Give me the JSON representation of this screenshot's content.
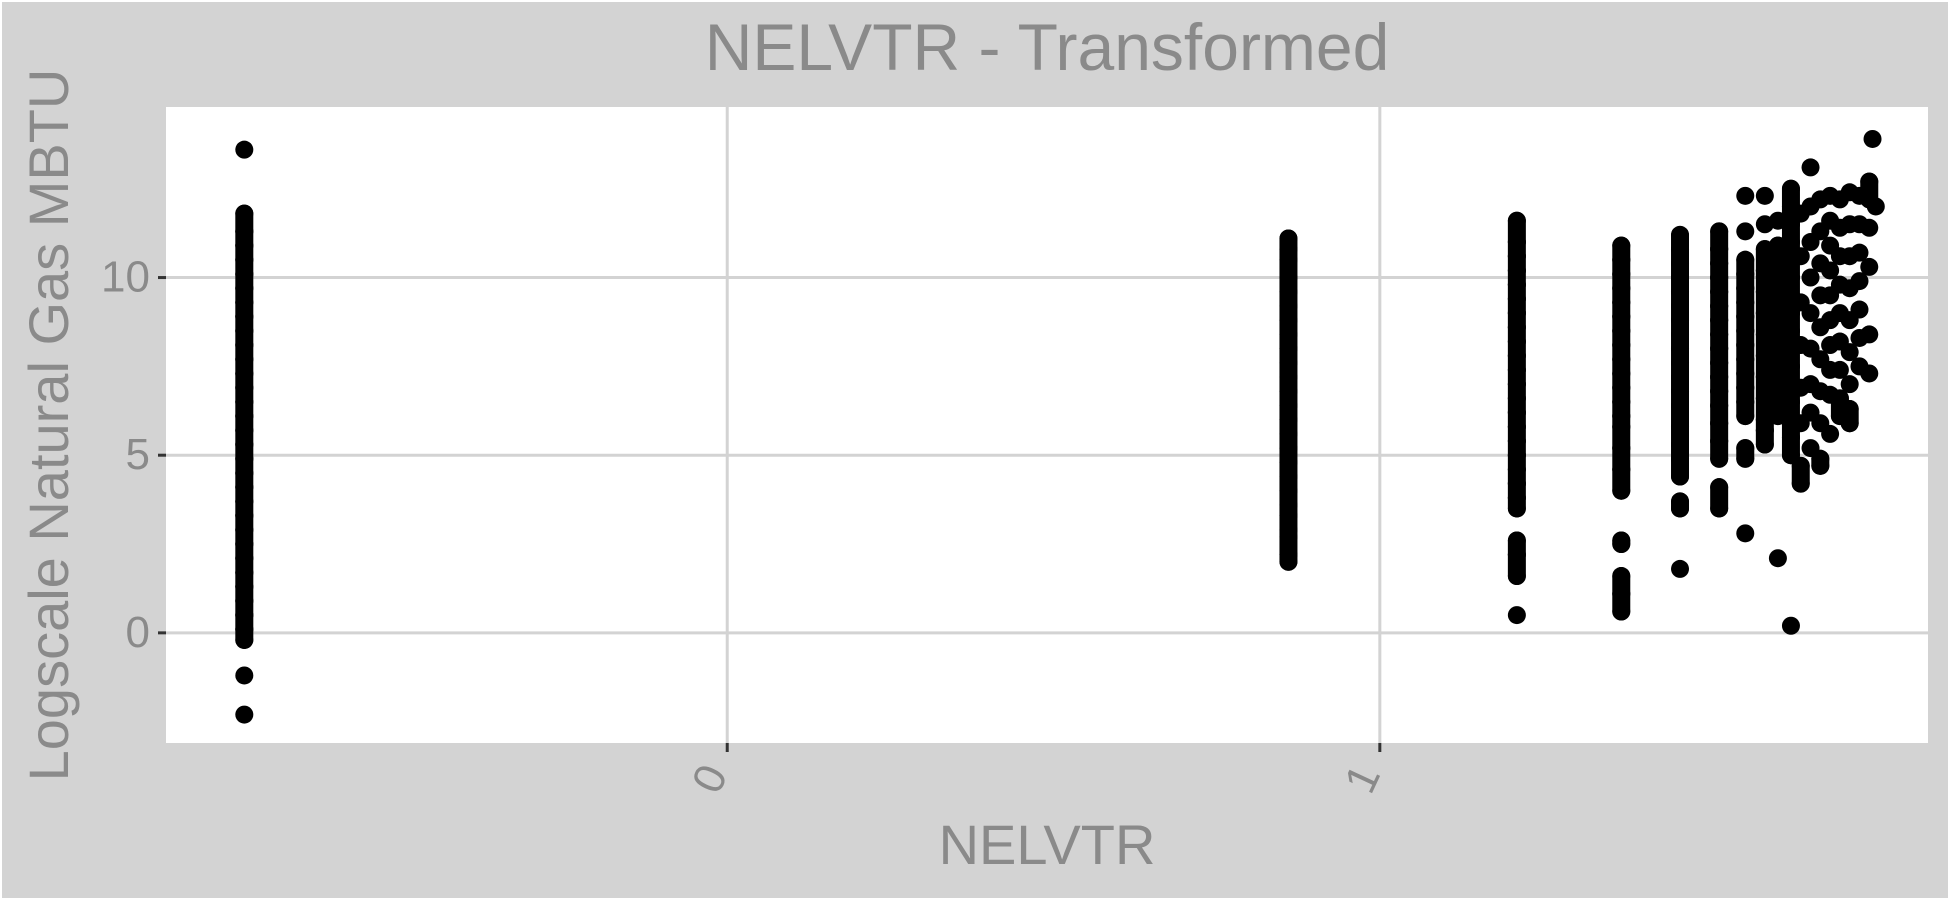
{
  "chart_data": {
    "type": "scatter",
    "title": "NELVTR - Transformed",
    "xlabel": "NELVTR",
    "ylabel": "Logscale Natural Gas MBTU",
    "x_ticks": [
      0,
      1
    ],
    "x_tick_labels": [
      "0",
      "1"
    ],
    "y_ticks": [
      0,
      5,
      10
    ],
    "y_tick_labels": [
      "0",
      "5",
      "10"
    ],
    "xlim": [
      -0.86,
      1.84
    ],
    "ylim": [
      -3.1,
      14.8
    ],
    "grid": true,
    "legend": "none",
    "colors": {
      "background": "#d3d3d3",
      "panel": "#ffffff",
      "grid": "#d3d3d3",
      "text": "#8a8a8a",
      "point": "#000000"
    },
    "series": [
      {
        "points": [
          [
            -0.74,
            13.6
          ],
          [
            -0.74,
            11.8
          ],
          [
            -0.74,
            11.3
          ],
          [
            -0.74,
            10.9
          ],
          [
            -0.74,
            10.5
          ],
          [
            -0.74,
            10.1
          ],
          [
            -0.74,
            9.7
          ],
          [
            -0.74,
            9.3
          ],
          [
            -0.74,
            8.9
          ],
          [
            -0.74,
            8.5
          ],
          [
            -0.74,
            8.1
          ],
          [
            -0.74,
            7.7
          ],
          [
            -0.74,
            7.3
          ],
          [
            -0.74,
            6.9
          ],
          [
            -0.74,
            6.5
          ],
          [
            -0.74,
            6.1
          ],
          [
            -0.74,
            5.7
          ],
          [
            -0.74,
            5.3
          ],
          [
            -0.74,
            4.9
          ],
          [
            -0.74,
            4.5
          ],
          [
            -0.74,
            4.1
          ],
          [
            -0.74,
            3.7
          ],
          [
            -0.74,
            3.3
          ],
          [
            -0.74,
            2.9
          ],
          [
            -0.74,
            2.5
          ],
          [
            -0.74,
            2.1
          ],
          [
            -0.74,
            1.7
          ],
          [
            -0.74,
            1.3
          ],
          [
            -0.74,
            0.9
          ],
          [
            -0.74,
            0.5
          ],
          [
            -0.74,
            0.1
          ],
          [
            -0.74,
            -0.2
          ],
          [
            -0.74,
            -1.2
          ],
          [
            -0.74,
            -2.3
          ],
          [
            0.86,
            11.1
          ],
          [
            0.86,
            10.8
          ],
          [
            0.86,
            10.5
          ],
          [
            0.86,
            10.0
          ],
          [
            0.86,
            9.6
          ],
          [
            0.86,
            9.2
          ],
          [
            0.86,
            8.8
          ],
          [
            0.86,
            8.4
          ],
          [
            0.86,
            8.0
          ],
          [
            0.86,
            7.6
          ],
          [
            0.86,
            7.2
          ],
          [
            0.86,
            6.8
          ],
          [
            0.86,
            6.4
          ],
          [
            0.86,
            6.0
          ],
          [
            0.86,
            5.6
          ],
          [
            0.86,
            5.2
          ],
          [
            0.86,
            4.8
          ],
          [
            0.86,
            4.4
          ],
          [
            0.86,
            4.0
          ],
          [
            0.86,
            3.6
          ],
          [
            0.86,
            3.3
          ],
          [
            0.86,
            2.9
          ],
          [
            0.86,
            2.7
          ],
          [
            0.86,
            2.2
          ],
          [
            0.86,
            2.0
          ],
          [
            1.21,
            11.6
          ],
          [
            1.21,
            11.0
          ],
          [
            1.21,
            10.6
          ],
          [
            1.21,
            10.2
          ],
          [
            1.21,
            9.8
          ],
          [
            1.21,
            9.4
          ],
          [
            1.21,
            9.0
          ],
          [
            1.21,
            8.6
          ],
          [
            1.21,
            8.2
          ],
          [
            1.21,
            7.8
          ],
          [
            1.21,
            7.4
          ],
          [
            1.21,
            7.0
          ],
          [
            1.21,
            6.6
          ],
          [
            1.21,
            6.2
          ],
          [
            1.21,
            5.8
          ],
          [
            1.21,
            5.4
          ],
          [
            1.21,
            5.0
          ],
          [
            1.21,
            4.6
          ],
          [
            1.21,
            4.2
          ],
          [
            1.21,
            3.8
          ],
          [
            1.21,
            3.5
          ],
          [
            1.21,
            2.6
          ],
          [
            1.21,
            2.2
          ],
          [
            1.21,
            1.6
          ],
          [
            1.21,
            0.5
          ],
          [
            1.37,
            10.9
          ],
          [
            1.37,
            10.5
          ],
          [
            1.37,
            10.1
          ],
          [
            1.37,
            9.7
          ],
          [
            1.37,
            9.3
          ],
          [
            1.37,
            8.9
          ],
          [
            1.37,
            8.5
          ],
          [
            1.37,
            8.1
          ],
          [
            1.37,
            7.7
          ],
          [
            1.37,
            7.3
          ],
          [
            1.37,
            6.9
          ],
          [
            1.37,
            6.5
          ],
          [
            1.37,
            6.1
          ],
          [
            1.37,
            5.8
          ],
          [
            1.37,
            5.2
          ],
          [
            1.37,
            4.6
          ],
          [
            1.37,
            4.0
          ],
          [
            1.37,
            2.6
          ],
          [
            1.37,
            2.5
          ],
          [
            1.37,
            1.6
          ],
          [
            1.37,
            1.1
          ],
          [
            1.37,
            0.6
          ],
          [
            1.46,
            11.2
          ],
          [
            1.46,
            10.8
          ],
          [
            1.46,
            10.4
          ],
          [
            1.46,
            10.0
          ],
          [
            1.46,
            9.6
          ],
          [
            1.46,
            9.2
          ],
          [
            1.46,
            8.8
          ],
          [
            1.46,
            8.4
          ],
          [
            1.46,
            8.0
          ],
          [
            1.46,
            7.6
          ],
          [
            1.46,
            7.2
          ],
          [
            1.46,
            6.8
          ],
          [
            1.46,
            6.4
          ],
          [
            1.46,
            5.8
          ],
          [
            1.46,
            5.3
          ],
          [
            1.46,
            4.9
          ],
          [
            1.46,
            4.4
          ],
          [
            1.46,
            3.7
          ],
          [
            1.46,
            3.5
          ],
          [
            1.46,
            1.8
          ],
          [
            1.52,
            11.3
          ],
          [
            1.52,
            10.8
          ],
          [
            1.52,
            10.4
          ],
          [
            1.52,
            10.0
          ],
          [
            1.52,
            9.6
          ],
          [
            1.52,
            9.2
          ],
          [
            1.52,
            8.8
          ],
          [
            1.52,
            8.4
          ],
          [
            1.52,
            8.0
          ],
          [
            1.52,
            7.6
          ],
          [
            1.52,
            7.2
          ],
          [
            1.52,
            6.8
          ],
          [
            1.52,
            6.4
          ],
          [
            1.52,
            5.9
          ],
          [
            1.52,
            5.4
          ],
          [
            1.52,
            4.9
          ],
          [
            1.52,
            4.1
          ],
          [
            1.52,
            3.5
          ],
          [
            1.56,
            12.3
          ],
          [
            1.56,
            11.3
          ],
          [
            1.56,
            10.5
          ],
          [
            1.56,
            10.1
          ],
          [
            1.56,
            9.7
          ],
          [
            1.56,
            9.3
          ],
          [
            1.56,
            8.9
          ],
          [
            1.56,
            8.5
          ],
          [
            1.56,
            8.1
          ],
          [
            1.56,
            7.7
          ],
          [
            1.56,
            7.3
          ],
          [
            1.56,
            6.9
          ],
          [
            1.56,
            6.5
          ],
          [
            1.56,
            6.1
          ],
          [
            1.56,
            5.2
          ],
          [
            1.56,
            4.9
          ],
          [
            1.56,
            2.8
          ],
          [
            1.59,
            12.3
          ],
          [
            1.59,
            11.5
          ],
          [
            1.59,
            10.8
          ],
          [
            1.59,
            10.2
          ],
          [
            1.59,
            9.6
          ],
          [
            1.59,
            9.0
          ],
          [
            1.59,
            8.4
          ],
          [
            1.59,
            7.8
          ],
          [
            1.59,
            7.2
          ],
          [
            1.59,
            6.6
          ],
          [
            1.59,
            6.0
          ],
          [
            1.59,
            5.7
          ],
          [
            1.59,
            5.3
          ],
          [
            1.61,
            11.6
          ],
          [
            1.61,
            10.9
          ],
          [
            1.61,
            10.3
          ],
          [
            1.61,
            9.7
          ],
          [
            1.61,
            9.1
          ],
          [
            1.61,
            8.5
          ],
          [
            1.61,
            7.9
          ],
          [
            1.61,
            7.3
          ],
          [
            1.61,
            6.7
          ],
          [
            1.61,
            6.1
          ],
          [
            1.61,
            2.1
          ],
          [
            1.63,
            12.5
          ],
          [
            1.63,
            12.0
          ],
          [
            1.63,
            11.5
          ],
          [
            1.63,
            11.0
          ],
          [
            1.63,
            10.5
          ],
          [
            1.63,
            10.0
          ],
          [
            1.63,
            9.5
          ],
          [
            1.63,
            9.0
          ],
          [
            1.63,
            8.5
          ],
          [
            1.63,
            8.0
          ],
          [
            1.63,
            7.5
          ],
          [
            1.63,
            7.0
          ],
          [
            1.63,
            6.5
          ],
          [
            1.63,
            6.0
          ],
          [
            1.63,
            5.5
          ],
          [
            1.63,
            5.0
          ],
          [
            1.63,
            0.2
          ],
          [
            1.645,
            11.8
          ],
          [
            1.645,
            10.6
          ],
          [
            1.645,
            9.3
          ],
          [
            1.645,
            8.1
          ],
          [
            1.645,
            6.9
          ],
          [
            1.645,
            5.9
          ],
          [
            1.645,
            4.7
          ],
          [
            1.645,
            4.2
          ],
          [
            1.66,
            13.1
          ],
          [
            1.66,
            12.0
          ],
          [
            1.66,
            11.0
          ],
          [
            1.66,
            10.0
          ],
          [
            1.66,
            9.0
          ],
          [
            1.66,
            8.0
          ],
          [
            1.66,
            7.0
          ],
          [
            1.66,
            6.2
          ],
          [
            1.66,
            5.2
          ],
          [
            1.675,
            12.2
          ],
          [
            1.675,
            11.3
          ],
          [
            1.675,
            10.4
          ],
          [
            1.675,
            9.5
          ],
          [
            1.675,
            8.6
          ],
          [
            1.675,
            7.7
          ],
          [
            1.675,
            6.8
          ],
          [
            1.675,
            5.9
          ],
          [
            1.675,
            4.9
          ],
          [
            1.675,
            4.7
          ],
          [
            1.69,
            12.3
          ],
          [
            1.69,
            11.6
          ],
          [
            1.69,
            10.9
          ],
          [
            1.69,
            10.2
          ],
          [
            1.69,
            9.5
          ],
          [
            1.69,
            8.8
          ],
          [
            1.69,
            8.1
          ],
          [
            1.69,
            7.4
          ],
          [
            1.69,
            6.7
          ],
          [
            1.69,
            5.6
          ],
          [
            1.705,
            12.2
          ],
          [
            1.705,
            11.4
          ],
          [
            1.705,
            10.6
          ],
          [
            1.705,
            9.8
          ],
          [
            1.705,
            9.0
          ],
          [
            1.705,
            8.2
          ],
          [
            1.705,
            7.4
          ],
          [
            1.705,
            6.6
          ],
          [
            1.705,
            6.1
          ],
          [
            1.72,
            12.4
          ],
          [
            1.72,
            11.5
          ],
          [
            1.72,
            10.6
          ],
          [
            1.72,
            9.7
          ],
          [
            1.72,
            8.8
          ],
          [
            1.72,
            7.9
          ],
          [
            1.72,
            7.0
          ],
          [
            1.72,
            6.3
          ],
          [
            1.72,
            5.9
          ],
          [
            1.735,
            12.3
          ],
          [
            1.735,
            11.5
          ],
          [
            1.735,
            10.7
          ],
          [
            1.735,
            9.9
          ],
          [
            1.735,
            9.1
          ],
          [
            1.735,
            8.3
          ],
          [
            1.735,
            7.5
          ],
          [
            1.75,
            12.7
          ],
          [
            1.75,
            12.2
          ],
          [
            1.75,
            11.4
          ],
          [
            1.75,
            10.3
          ],
          [
            1.75,
            8.4
          ],
          [
            1.75,
            7.3
          ],
          [
            1.755,
            13.9
          ],
          [
            1.76,
            12.0
          ]
        ]
      }
    ]
  }
}
